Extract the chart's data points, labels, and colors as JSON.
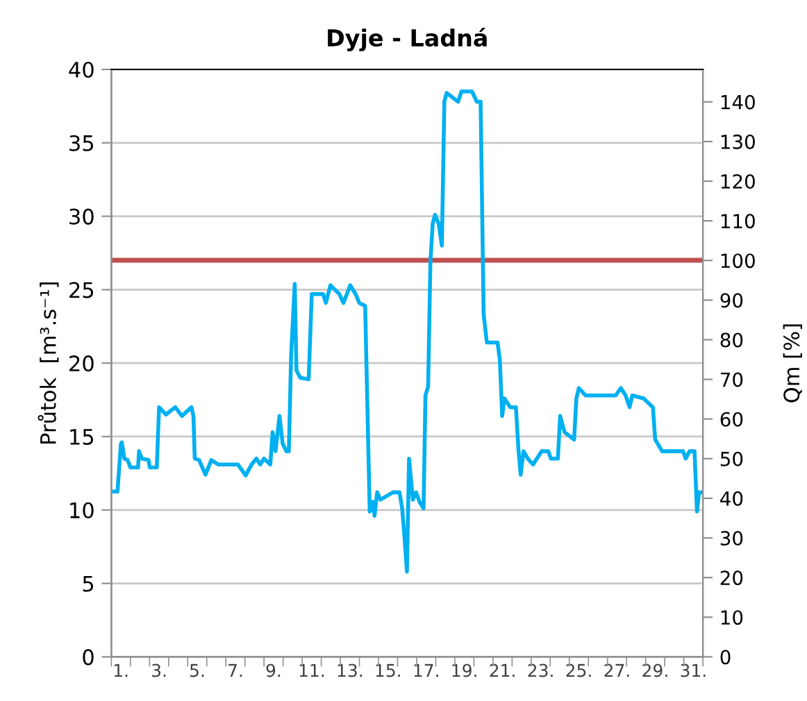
{
  "chart_data": {
    "type": "line",
    "title": "Dyje - Ladná",
    "ylabel": "Průtok  [m³.s⁻¹]",
    "y2label": "Qm [%]",
    "xlim": [
      1,
      32
    ],
    "xticks": [
      {
        "value": 1,
        "label": null
      },
      {
        "value": 2,
        "label": null
      },
      {
        "value": 3,
        "label": null
      },
      {
        "value": 4,
        "label": null
      },
      {
        "value": 5,
        "label": null
      },
      {
        "value": 6,
        "label": null
      },
      {
        "value": 7,
        "label": null
      },
      {
        "value": 8,
        "label": null
      },
      {
        "value": 9,
        "label": null
      },
      {
        "value": 10,
        "label": null
      },
      {
        "value": 11,
        "label": null
      },
      {
        "value": 12,
        "label": null
      },
      {
        "value": 13,
        "label": null
      },
      {
        "value": 14,
        "label": null
      },
      {
        "value": 15,
        "label": null
      },
      {
        "value": 16,
        "label": null
      },
      {
        "value": 17,
        "label": null
      },
      {
        "value": 18,
        "label": null
      },
      {
        "value": 19,
        "label": null
      },
      {
        "value": 20,
        "label": null
      },
      {
        "value": 21,
        "label": null
      },
      {
        "value": 22,
        "label": null
      },
      {
        "value": 23,
        "label": null
      },
      {
        "value": 24,
        "label": null
      },
      {
        "value": 25,
        "label": null
      },
      {
        "value": 26,
        "label": null
      },
      {
        "value": 27,
        "label": null
      },
      {
        "value": 28,
        "label": null
      },
      {
        "value": 29,
        "label": null
      },
      {
        "value": 30,
        "label": null
      },
      {
        "value": 31,
        "label": null
      },
      {
        "value": 32,
        "label": null
      },
      {
        "value": 1.5,
        "label": "1."
      },
      {
        "value": 3.5,
        "label": "3."
      },
      {
        "value": 5.5,
        "label": "5."
      },
      {
        "value": 7.5,
        "label": "7."
      },
      {
        "value": 9.5,
        "label": "9."
      },
      {
        "value": 11.5,
        "label": "11."
      },
      {
        "value": 13.5,
        "label": "13."
      },
      {
        "value": 15.5,
        "label": "15."
      },
      {
        "value": 17.5,
        "label": "17."
      },
      {
        "value": 19.5,
        "label": "19."
      },
      {
        "value": 21.5,
        "label": "21."
      },
      {
        "value": 23.5,
        "label": "23."
      },
      {
        "value": 25.5,
        "label": "25."
      },
      {
        "value": 27.5,
        "label": "27."
      },
      {
        "value": 29.5,
        "label": "29."
      },
      {
        "value": 31.5,
        "label": "31."
      }
    ],
    "ylim": [
      0,
      40
    ],
    "yticks": [
      0,
      5,
      10,
      15,
      20,
      25,
      30,
      35,
      40
    ],
    "y2lim": [
      0,
      148.2
    ],
    "y2ticks": [
      0,
      10,
      20,
      30,
      40,
      50,
      60,
      70,
      80,
      90,
      100,
      110,
      120,
      130,
      140
    ],
    "grid": "y",
    "line_style": "solid",
    "marker": "none",
    "ref_lines": [
      {
        "axis": "y",
        "value": 27,
        "color": "#c0504d"
      }
    ],
    "series": [
      {
        "color": "#00b0f0",
        "x": [
          1.0,
          1.32,
          1.5,
          1.55,
          1.68,
          1.85,
          2.0,
          2.4,
          2.45,
          2.6,
          2.95,
          3.01,
          3.38,
          3.5,
          3.86,
          4.35,
          4.7,
          5.2,
          5.3,
          5.37,
          5.6,
          5.93,
          6.24,
          6.6,
          7.63,
          8.04,
          8.35,
          8.6,
          8.8,
          9.0,
          9.33,
          9.45,
          9.6,
          9.81,
          9.98,
          10.17,
          10.3,
          10.42,
          10.61,
          10.7,
          10.9,
          11.34,
          11.5,
          12.1,
          12.24,
          12.48,
          12.95,
          13.16,
          13.52,
          13.8,
          13.99,
          14.3,
          14.54,
          14.7,
          14.79,
          14.93,
          15.1,
          15.76,
          16.1,
          16.24,
          16.37,
          16.49,
          16.6,
          16.8,
          16.97,
          17.15,
          17.36,
          17.46,
          17.6,
          17.72,
          17.84,
          17.96,
          18.15,
          18.32,
          18.45,
          18.57,
          19.17,
          19.35,
          19.9,
          20.15,
          20.35,
          20.51,
          20.68,
          21.24,
          21.36,
          21.48,
          21.6,
          21.9,
          22.2,
          22.33,
          22.45,
          22.6,
          22.82,
          23.1,
          23.3,
          23.55,
          23.9,
          24.03,
          24.4,
          24.52,
          24.75,
          25.25,
          25.37,
          25.5,
          25.85,
          27.43,
          27.7,
          27.95,
          28.16,
          28.3,
          28.89,
          29.38,
          29.5,
          29.86,
          30.96,
          31.1,
          31.3,
          31.56,
          31.69,
          31.8,
          32.0
        ],
        "values": [
          11.25,
          11.25,
          14.5,
          14.6,
          13.5,
          13.4,
          12.9,
          12.9,
          14.0,
          13.5,
          13.4,
          12.9,
          12.9,
          17.0,
          16.5,
          17.0,
          16.4,
          17.0,
          16.4,
          13.5,
          13.4,
          12.4,
          13.4,
          13.1,
          13.1,
          12.35,
          13.1,
          13.5,
          13.1,
          13.5,
          13.1,
          15.3,
          14.0,
          16.4,
          14.5,
          14.0,
          14.0,
          20.5,
          25.4,
          19.5,
          19.0,
          18.9,
          24.7,
          24.7,
          24.1,
          25.3,
          24.7,
          24.1,
          25.3,
          24.7,
          24.1,
          23.9,
          9.9,
          10.55,
          9.6,
          11.2,
          10.7,
          11.2,
          11.2,
          10.1,
          8.0,
          5.8,
          13.5,
          10.7,
          11.2,
          10.55,
          10.1,
          17.8,
          18.4,
          26.9,
          29.5,
          30.1,
          29.5,
          28.0,
          37.8,
          38.4,
          37.8,
          38.5,
          38.5,
          37.8,
          37.8,
          23.3,
          21.4,
          21.4,
          20.2,
          16.4,
          17.6,
          17.0,
          17.0,
          14.2,
          12.4,
          14.0,
          13.5,
          13.1,
          13.5,
          14.0,
          14.0,
          13.5,
          13.5,
          16.4,
          15.3,
          14.8,
          17.6,
          18.3,
          17.8,
          17.8,
          18.3,
          17.8,
          17.0,
          17.8,
          17.6,
          17.0,
          14.8,
          14.0,
          14.0,
          13.5,
          14.0,
          14.0,
          9.9,
          11.2,
          11.2
        ]
      }
    ]
  }
}
